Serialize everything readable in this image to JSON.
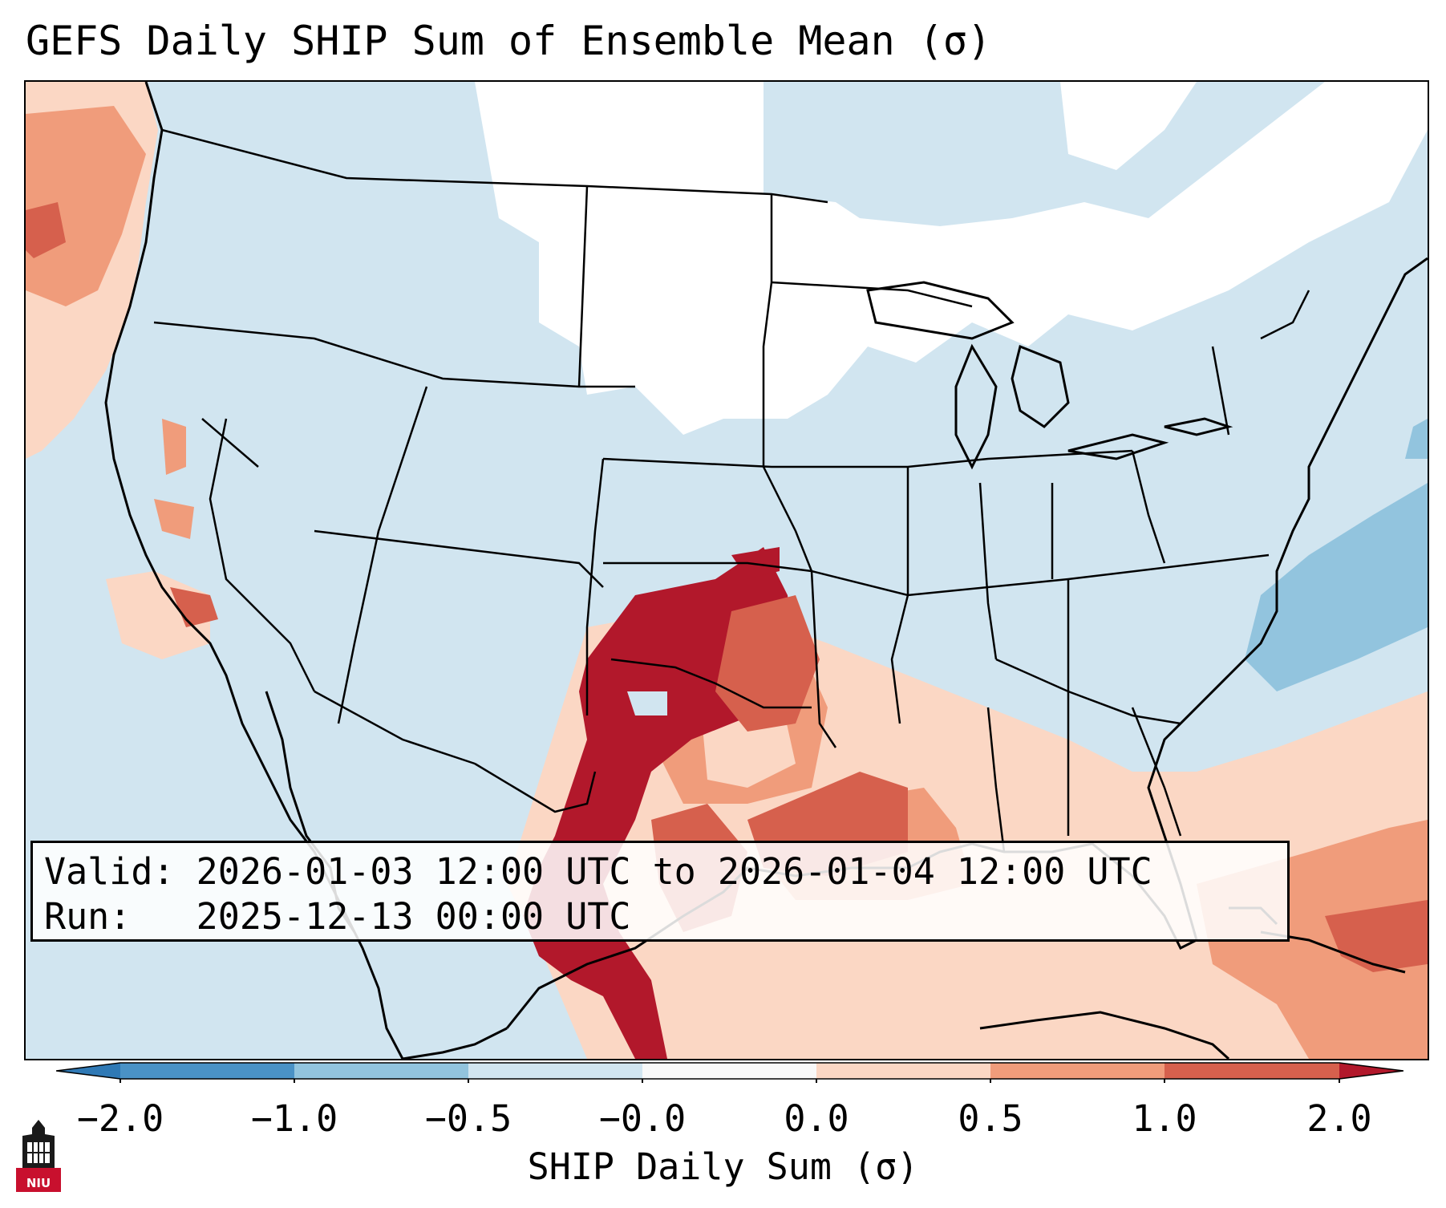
{
  "title": "GEFS Daily SHIP Sum of Ensemble Mean (σ)",
  "info": {
    "valid_line": "Valid: 2026-01-03 12:00 UTC to 2026-01-04 12:00 UTC",
    "run_line": "Run:   2025-12-13 00:00 UTC"
  },
  "colorbar": {
    "label": "SHIP Daily Sum (σ)",
    "ticks": [
      "−2.0",
      "−1.0",
      "−0.5",
      "−0.0",
      "0.0",
      "0.5",
      "1.0",
      "2.0"
    ],
    "colors": {
      "below_-2": "#2f79b5",
      "-2_to_-1": "#4a92c6",
      "-1_to_-0.5": "#92c4de",
      "-0.5_to_-0": "#d1e5f0",
      "zero": "#f8f8f8",
      "0_to_0.5": "#fbd7c4",
      "0.5_to_1": "#f09c7b",
      "1_to_2": "#d6604d",
      "above_2": "#b2182b"
    }
  },
  "logo": {
    "text": "NIU",
    "name": "niu-logo"
  }
}
